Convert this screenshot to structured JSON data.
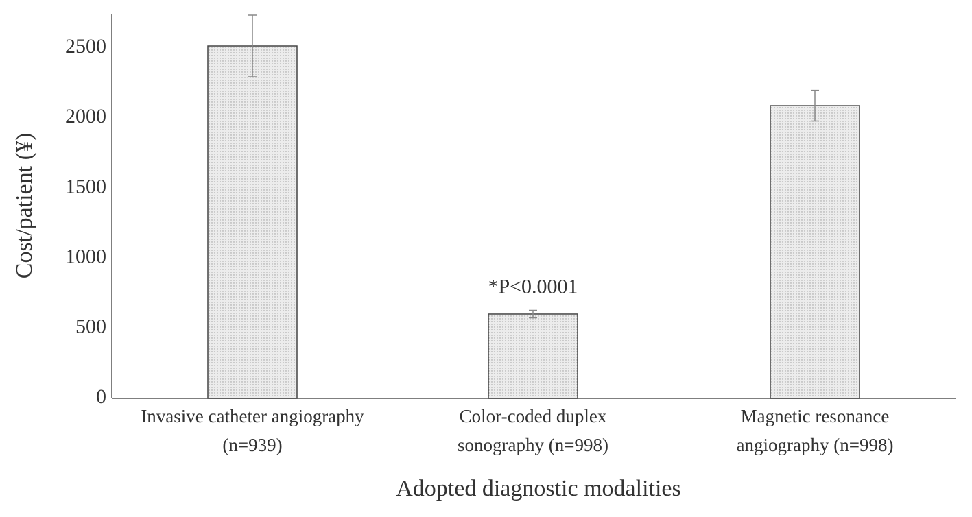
{
  "chart_data": {
    "type": "bar",
    "y_label": "Cost/patient (¥)",
    "x_label": "Adopted diagnostic modalities",
    "annotation": "*P<0.0001",
    "categories": [
      [
        "Invasive catheter angiography",
        "(n=939)"
      ],
      [
        "Color-coded duplex",
        "sonography (n=998)"
      ],
      [
        "Magnetic resonance",
        "angiography (n=998)"
      ]
    ],
    "values": [
      2515,
      602,
      2089
    ],
    "errors": [
      220,
      27,
      110
    ],
    "color": "#e6e6e6",
    "ylim": [
      0,
      2745
    ],
    "yticks": [
      0,
      500,
      1000,
      1500,
      2000,
      2500
    ],
    "grid": false
  }
}
